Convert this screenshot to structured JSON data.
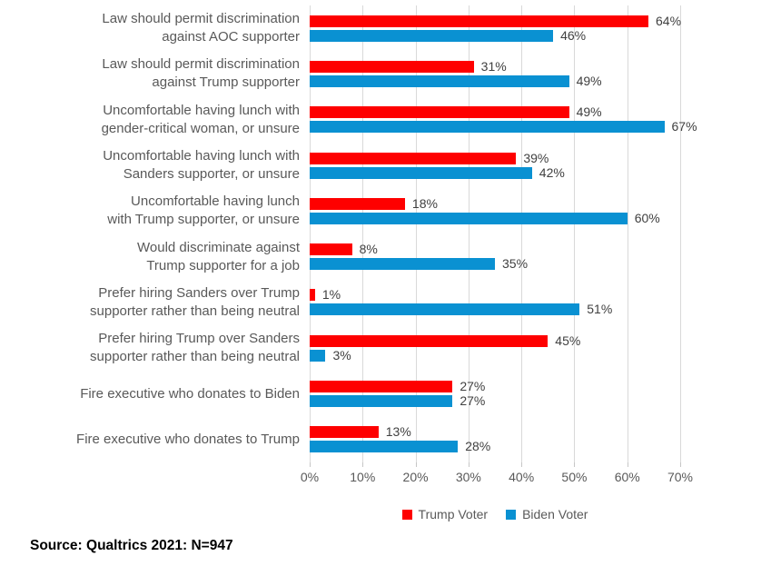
{
  "source_note": "Source: Qualtrics 2021: N=947",
  "colors": {
    "trump_red": "#fe0000",
    "biden_blue": "#0a91d2",
    "gridline": "#d9d9d9",
    "axis_text": "#595959",
    "value_text": "#404040"
  },
  "legend": {
    "items": [
      {
        "label": "Trump Voter",
        "color": "#fe0000"
      },
      {
        "label": "Biden Voter",
        "color": "#0a91d2"
      }
    ]
  },
  "chart_data": {
    "type": "bar",
    "orientation": "horizontal",
    "title": "",
    "xlabel": "",
    "ylabel": "",
    "xlim": [
      0,
      70
    ],
    "grid": true,
    "legend_position": "bottom",
    "value_suffix": "%",
    "x_ticks": [
      "0%",
      "10%",
      "20%",
      "30%",
      "40%",
      "50%",
      "60%",
      "70%"
    ],
    "categories": [
      "Law should permit discrimination\nagainst AOC supporter",
      "Law should permit discrimination\nagainst Trump supporter",
      "Uncomfortable having lunch with\ngender-critical woman, or unsure",
      "Uncomfortable having lunch with\nSanders supporter, or unsure",
      "Uncomfortable having lunch\nwith Trump supporter, or unsure",
      "Would discriminate against\nTrump supporter for a job",
      "Prefer hiring Sanders over Trump\nsupporter rather than being neutral",
      "Prefer hiring Trump over Sanders\nsupporter rather than being neutral",
      "Fire executive who donates to Biden",
      "Fire executive who donates to Trump"
    ],
    "series": [
      {
        "name": "Trump Voter",
        "color": "#fe0000",
        "values": [
          64,
          31,
          49,
          39,
          18,
          8,
          1,
          45,
          27,
          13
        ]
      },
      {
        "name": "Biden Voter",
        "color": "#0a91d2",
        "values": [
          46,
          49,
          67,
          42,
          60,
          35,
          51,
          3,
          27,
          28
        ]
      }
    ]
  }
}
